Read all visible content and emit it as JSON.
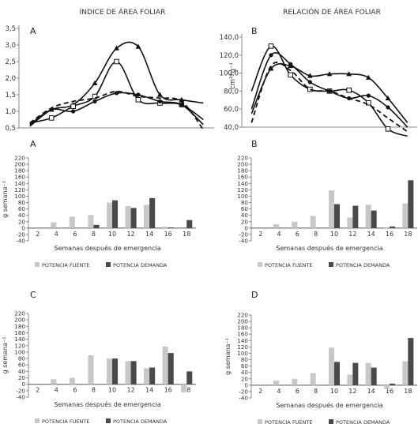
{
  "chart_data": [
    {
      "type": "line",
      "panel_letter": "A",
      "title": "ÍNDICE DE ÁREA FOLIAR",
      "ylim": [
        0.5,
        3.5
      ],
      "yticks": [
        "0,5",
        "1,0",
        "1,5",
        "2,0",
        "2,5",
        "3,0",
        "3,5"
      ],
      "series": [
        {
          "marker": "triangle",
          "dash": false,
          "x": [
            2,
            4,
            6,
            8,
            10,
            12,
            14,
            16,
            18
          ],
          "values": [
            0.55,
            1.05,
            1.2,
            1.85,
            2.9,
            2.95,
            1.5,
            1.35,
            1.25
          ]
        },
        {
          "marker": "square-open",
          "dash": false,
          "x": [
            2,
            4,
            6,
            8,
            10,
            12,
            14,
            16,
            18
          ],
          "values": [
            0.65,
            0.8,
            1.15,
            1.45,
            2.5,
            1.35,
            1.25,
            1.2,
            0.75
          ]
        },
        {
          "marker": "circle",
          "dash": false,
          "x": [
            2,
            4,
            6,
            8,
            10,
            12,
            14,
            16,
            18
          ],
          "values": [
            0.6,
            1.05,
            1.0,
            1.3,
            1.55,
            1.5,
            1.3,
            1.2,
            0.6
          ]
        },
        {
          "marker": "none",
          "dash": true,
          "x": [
            2,
            4,
            6,
            8,
            10,
            12,
            14,
            16,
            18
          ],
          "values": [
            0.65,
            1.1,
            1.3,
            1.4,
            1.6,
            1.45,
            1.4,
            1.3,
            0.45
          ]
        }
      ]
    },
    {
      "type": "line",
      "panel_letter": "B",
      "title": "RELACIÓN DE ÁREA FOLIAR",
      "ylabel": "cm²*g⁻¹",
      "ylim": [
        40,
        140
      ],
      "yticks": [
        "40,0",
        "60,0",
        "80,0",
        "100,0",
        "120,0",
        "140,0"
      ],
      "series": [
        {
          "marker": "triangle",
          "dash": false,
          "x": [
            2,
            4,
            6,
            8,
            10,
            12,
            14,
            16,
            18
          ],
          "values": [
            55,
            105,
            108,
            97,
            99,
            99,
            95,
            72,
            45
          ]
        },
        {
          "marker": "square-open",
          "dash": false,
          "x": [
            2,
            4,
            6,
            8,
            10,
            12,
            14,
            16,
            18
          ],
          "values": [
            80,
            130,
            98,
            82,
            80,
            81,
            67,
            38,
            30
          ]
        },
        {
          "marker": "circle",
          "dash": false,
          "x": [
            2,
            4,
            6,
            8,
            10,
            12,
            14,
            16,
            18
          ],
          "values": [
            60,
            120,
            110,
            90,
            80,
            72,
            75,
            62,
            40
          ]
        },
        {
          "marker": "none",
          "dash": true,
          "x": [
            2,
            4,
            6,
            8,
            10,
            12,
            14,
            16,
            18
          ],
          "values": [
            45,
            108,
            103,
            82,
            80,
            72,
            65,
            50,
            35
          ]
        }
      ]
    },
    {
      "type": "bar",
      "panel_letter": "A",
      "ylabel": "g semana⁻¹",
      "xlabel": "Semanas después de emergencia",
      "categories": [
        "2",
        "4",
        "6",
        "8",
        "10",
        "12",
        "14",
        "16",
        "18"
      ],
      "yticks": [
        "-40",
        "-20",
        "0",
        "20",
        "40",
        "60",
        "80",
        "100",
        "120",
        "140",
        "160",
        "180",
        "200",
        "220"
      ],
      "ylim": [
        -40,
        220
      ],
      "series": [
        {
          "name": "POTENCIA FUENTE",
          "values": [
            0,
            18,
            36,
            41,
            80,
            69,
            73,
            4,
            0
          ]
        },
        {
          "name": "POTENCIA DEMANDA",
          "values": [
            0,
            0,
            0,
            10,
            87,
            63,
            94,
            2,
            25
          ]
        }
      ]
    },
    {
      "type": "bar",
      "panel_letter": "B",
      "xlabel": "Semanas después de emergencia",
      "categories": [
        "2",
        "4",
        "6",
        "8",
        "10",
        "12",
        "14",
        "16",
        "18"
      ],
      "yticks": [
        "-40",
        "-20",
        "0",
        "20",
        "40",
        "60",
        "80",
        "100",
        "120",
        "140",
        "160",
        "180",
        "200",
        "220"
      ],
      "ylim": [
        -40,
        220
      ],
      "series": [
        {
          "name": "POTENCIA FUENTE",
          "values": [
            0,
            12,
            20,
            38,
            118,
            33,
            73,
            2,
            77
          ]
        },
        {
          "name": "POTENCIA DEMANDA",
          "values": [
            0,
            0,
            0,
            0,
            75,
            70,
            55,
            5,
            150
          ]
        }
      ]
    },
    {
      "type": "bar",
      "panel_letter": "C",
      "ylabel": "g semana⁻¹",
      "xlabel": "Semanas después de emergencia",
      "categories": [
        "2",
        "4",
        "6",
        "8",
        "10",
        "12",
        "14",
        "16",
        "18"
      ],
      "yticks": [
        "-40",
        "-20",
        "0",
        "20",
        "40",
        "60",
        "80",
        "100",
        "120",
        "140",
        "160",
        "180",
        "200",
        "220"
      ],
      "ylim": [
        -40,
        220
      ],
      "series": [
        {
          "name": "POTENCIA FUENTE",
          "values": [
            0,
            16,
            20,
            90,
            80,
            72,
            50,
            117,
            -25
          ]
        },
        {
          "name": "POTENCIA DEMANDA",
          "values": [
            0,
            0,
            0,
            0,
            80,
            72,
            52,
            97,
            40
          ]
        }
      ]
    },
    {
      "type": "bar",
      "panel_letter": "D",
      "ylabel": "g semana⁻¹",
      "xlabel": "Semanas después de emergencia",
      "categories": [
        "2",
        "4",
        "6",
        "8",
        "10",
        "12",
        "14",
        "16",
        "18"
      ],
      "yticks": [
        "-40",
        "-20",
        "0",
        "20",
        "40",
        "60",
        "80",
        "100",
        "120",
        "140",
        "160",
        "180",
        "200",
        "220"
      ],
      "ylim": [
        -40,
        220
      ],
      "series": [
        {
          "name": "POTENCIA FUENTE",
          "values": [
            0,
            14,
            20,
            38,
            118,
            33,
            70,
            -12,
            75
          ]
        },
        {
          "name": "POTENCIA DEMANDA",
          "values": [
            0,
            0,
            0,
            0,
            73,
            70,
            55,
            5,
            148
          ]
        }
      ]
    }
  ],
  "colors": {
    "fuente": "#c8c8c8",
    "demanda": "#4a4a4a",
    "line": "#111111",
    "axis": "#888888"
  }
}
